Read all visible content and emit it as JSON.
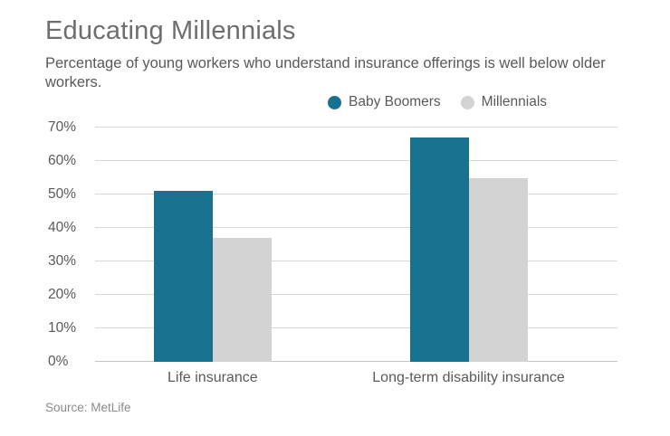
{
  "header": {
    "title": "Educating Millennials",
    "subtitle": "Percentage of young workers who understand insurance offerings is well below older workers."
  },
  "source": "Source: MetLife",
  "colors": {
    "baby_boomers": "#17718F",
    "millennials": "#D3D3D3",
    "title_text": "#6E6E6E",
    "body_text": "#595959",
    "gridline": "#D8D8D8"
  },
  "chart_data": {
    "type": "bar",
    "title": "Educating Millennials",
    "subtitle": "Percentage of young workers who understand insurance offerings is well below older workers.",
    "categories": [
      "Life insurance",
      "Long-term disability insurance"
    ],
    "series": [
      {
        "name": "Baby Boomers",
        "values": [
          51,
          67
        ],
        "color": "#17718F"
      },
      {
        "name": "Millennials",
        "values": [
          37,
          55
        ],
        "color": "#D3D3D3"
      }
    ],
    "xlabel": "",
    "ylabel": "",
    "ylim": [
      0,
      70
    ],
    "yticks": [
      0,
      10,
      20,
      30,
      40,
      50,
      60,
      70
    ],
    "ytick_suffix": "%",
    "grid": true,
    "legend_position": "top-right",
    "source": "Source: MetLife"
  }
}
